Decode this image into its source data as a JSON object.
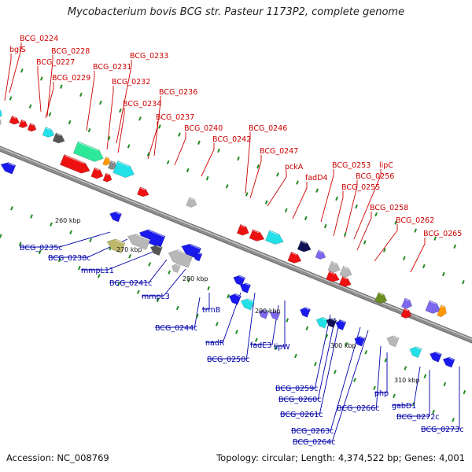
{
  "title": "Mycobacterium bovis BCG str. Pasteur 1173P2, complete genome",
  "footer": {
    "accession": "Accession: NC_008769",
    "topology": "Topology: circular; Length: 4,374,522 bp; Genes: 4,001"
  },
  "colors": {
    "forward_label": "#cc0000",
    "reverse_label": "#0000aa",
    "backbone": "#8c8c8c",
    "tick": "#228b22"
  },
  "ticks": [
    "260 kbp",
    "270 kbp",
    "280 kbp",
    "290 kbp",
    "300 kbp",
    "310 kbp"
  ],
  "forward_labels": [
    "BCG_0224",
    "bglS",
    "BCG_0228",
    "BCG_0227",
    "BCG_0229",
    "BCG_0231",
    "BCG_0233",
    "BCG_0232",
    "BCG_0234",
    "BCG_0236",
    "BCG_0237",
    "BCG_0240",
    "BCG_0242",
    "BCG_0246",
    "BCG_0247",
    "pckA",
    "fadD4",
    "BCG_0253",
    "lipC",
    "BCG_0256",
    "BCG_0255",
    "BCG_0258",
    "BCG_0262",
    "BCG_0265"
  ],
  "reverse_labels": [
    "BCG_0235c",
    "BCG_0238c",
    "mmpL11",
    "BCG_0241c",
    "mmpL3",
    "trmB",
    "BCG_0244c",
    "nadR",
    "BCG_0250c",
    "fadE3",
    "lipW",
    "BCG_0259c",
    "BCG_0260c",
    "BCG_0261c",
    "BCG_0263c",
    "BCG_0264c",
    "BCG_0266c",
    "php",
    "gabD1",
    "BCG_0272c",
    "BCG_0273c"
  ]
}
